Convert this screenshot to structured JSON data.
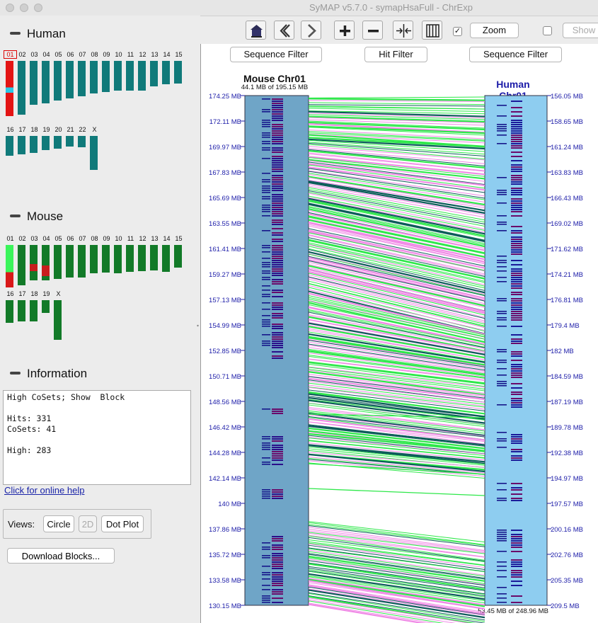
{
  "window": {
    "title": "SyMAP v5.7.0 - symapHsaFull - ChrExp"
  },
  "human": {
    "heading": "Human",
    "row1": [
      "01",
      "02",
      "03",
      "04",
      "05",
      "06",
      "07",
      "08",
      "09",
      "10",
      "11",
      "12",
      "13",
      "14",
      "15"
    ],
    "row2": [
      "16",
      "17",
      "18",
      "19",
      "20",
      "21",
      "22",
      "X"
    ],
    "selected": "01",
    "color": "#107a7a"
  },
  "mouse": {
    "heading": "Mouse",
    "row1": [
      "01",
      "02",
      "03",
      "04",
      "05",
      "06",
      "07",
      "08",
      "09",
      "10",
      "11",
      "12",
      "13",
      "14",
      "15"
    ],
    "row2": [
      "16",
      "17",
      "18",
      "19",
      "X"
    ],
    "color": "#127a28"
  },
  "information": {
    "heading": "Information",
    "lines": [
      "High CoSets; Show  Block",
      "",
      "Hits: 331",
      "CoSets: 41",
      "",
      "High: 283"
    ],
    "help_link": "Click for online help"
  },
  "views": {
    "label": "Views:",
    "circle": "Circle",
    "twod": "2D",
    "dotplot": "Dot Plot"
  },
  "download_button": "Download Blocks...",
  "toolbar": {
    "zoom_label": "Zoom",
    "zoom_checked": true,
    "show_label": "Show",
    "show_checked": false
  },
  "filters": {
    "left_seq": "Sequence Filter",
    "hit": "Hit Filter",
    "right_seq": "Sequence Filter"
  },
  "left_track": {
    "title": "Mouse Chr01",
    "subtitle": "44.1 MB of 195.15 MB",
    "ticks": [
      "174.25 MB",
      "172.11 MB",
      "169.97 MB",
      "167.83 MB",
      "165.69 MB",
      "163.55 MB",
      "161.41 MB",
      "159.27 MB",
      "157.13 MB",
      "154.99 MB",
      "152.85 MB",
      "150.71 MB",
      "148.56 MB",
      "146.42 MB",
      "144.28 MB",
      "142.14 MB",
      "140 MB",
      "137.86 MB",
      "135.72 MB",
      "133.58 MB",
      "130.15 MB"
    ]
  },
  "right_track": {
    "title": "Human Chr01",
    "subtitle": "53.45 MB of 248.96 MB",
    "ticks": [
      "156.05 MB",
      "158.65 MB",
      "161.24 MB",
      "163.83 MB",
      "166.43 MB",
      "169.02 MB",
      "171.62 MB",
      "174.21 MB",
      "176.81 MB",
      "179.4 MB",
      "182 MB",
      "184.59 MB",
      "187.19 MB",
      "189.78 MB",
      "192.38 MB",
      "194.97 MB",
      "197.57 MB",
      "200.16 MB",
      "202.76 MB",
      "205.35 MB",
      "209.5 MB"
    ]
  },
  "colors": {
    "left_track": "#6fa5c7",
    "right_track": "#8ecdf0",
    "axis_text": "#1c1ca8",
    "hit_green": "#2ee84a",
    "hit_pink": "#f08ae6",
    "hit_dark": "#0d5c5a"
  }
}
